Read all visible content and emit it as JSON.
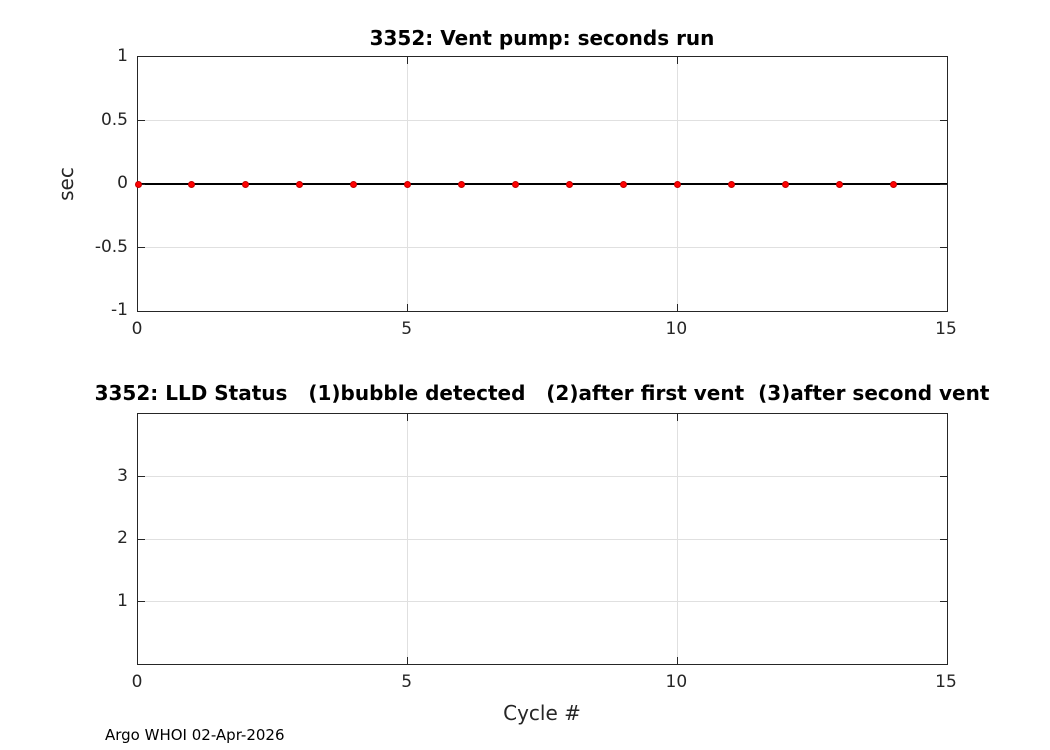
{
  "figure": {
    "footer": "Argo WHOI 02-Apr-2026",
    "background_color": "#ffffff"
  },
  "chart_data": [
    {
      "type": "scatter",
      "title": "3352: Vent pump: seconds run",
      "xlabel": "",
      "ylabel": "sec",
      "xlim": [
        0,
        15
      ],
      "ylim": [
        -1,
        1
      ],
      "xticks": [
        0,
        5,
        10,
        15
      ],
      "yticks": [
        -1,
        -0.5,
        0,
        0.5,
        1
      ],
      "grid": true,
      "legend": "none",
      "x": [
        0,
        1,
        2,
        3,
        4,
        5,
        6,
        7,
        8,
        9,
        10,
        11,
        12,
        13,
        14
      ],
      "y": [
        0,
        0,
        0,
        0,
        0,
        0,
        0,
        0,
        0,
        0,
        0,
        0,
        0,
        0,
        0
      ],
      "marker_color": "#ff0000",
      "marker_edge_color": "#c40000",
      "zero_line": true,
      "zero_line_color": "#000000",
      "grid_color": "#e0e0e0",
      "axis_color": "#262626"
    },
    {
      "type": "scatter",
      "title": "3352: LLD Status   (1)bubble detected   (2)after first vent  (3)after second vent",
      "xlabel": "Cycle #",
      "ylabel": "",
      "xlim": [
        0,
        15
      ],
      "ylim": [
        0,
        4
      ],
      "xticks": [
        0,
        5,
        10,
        15
      ],
      "yticks": [
        1,
        2,
        3
      ],
      "grid": true,
      "legend": "none",
      "x": [],
      "y": [],
      "zero_line": false,
      "grid_color": "#e0e0e0",
      "axis_color": "#262626"
    }
  ]
}
